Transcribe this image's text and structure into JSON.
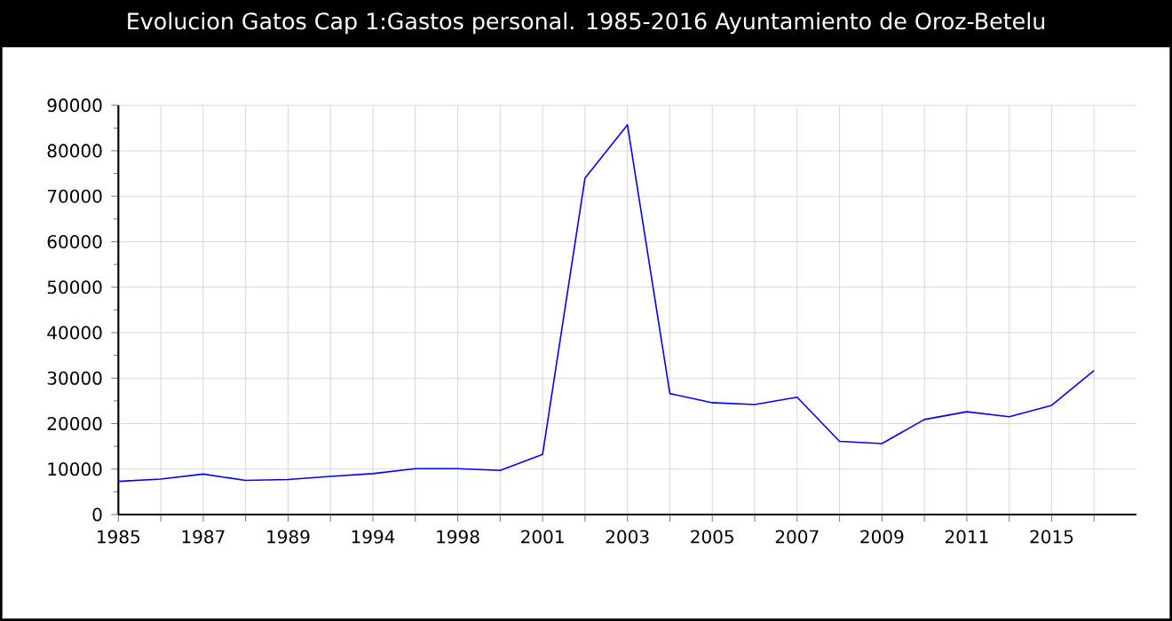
{
  "chart_data": {
    "type": "line",
    "title": "Evolucion Gatos Cap 1:Gastos personal. 1985-2016 Ayuntamiento de Oroz-Betelu",
    "categories": [
      "1985",
      null,
      "1987",
      null,
      "1989",
      null,
      "1994",
      null,
      "1998",
      null,
      "2001",
      null,
      "2003",
      null,
      "2005",
      null,
      "2007",
      null,
      "2009",
      null,
      "2011",
      null,
      "2015",
      null
    ],
    "series": [
      {
        "color": "#0000ff",
        "values": [
          7300,
          7800,
          8900,
          7500,
          7700,
          8400,
          9000,
          10100,
          10100,
          9700,
          13200,
          74000,
          85700,
          26600,
          24600,
          24200,
          25800,
          16100,
          15600,
          20900,
          22600,
          21500,
          24000,
          31700
        ]
      }
    ],
    "ylim": [
      0,
      90000
    ],
    "yticks": [
      0,
      10000,
      20000,
      30000,
      40000,
      50000,
      60000,
      70000,
      80000,
      90000
    ],
    "grid": true,
    "marker": "none",
    "line_style": "solid"
  }
}
